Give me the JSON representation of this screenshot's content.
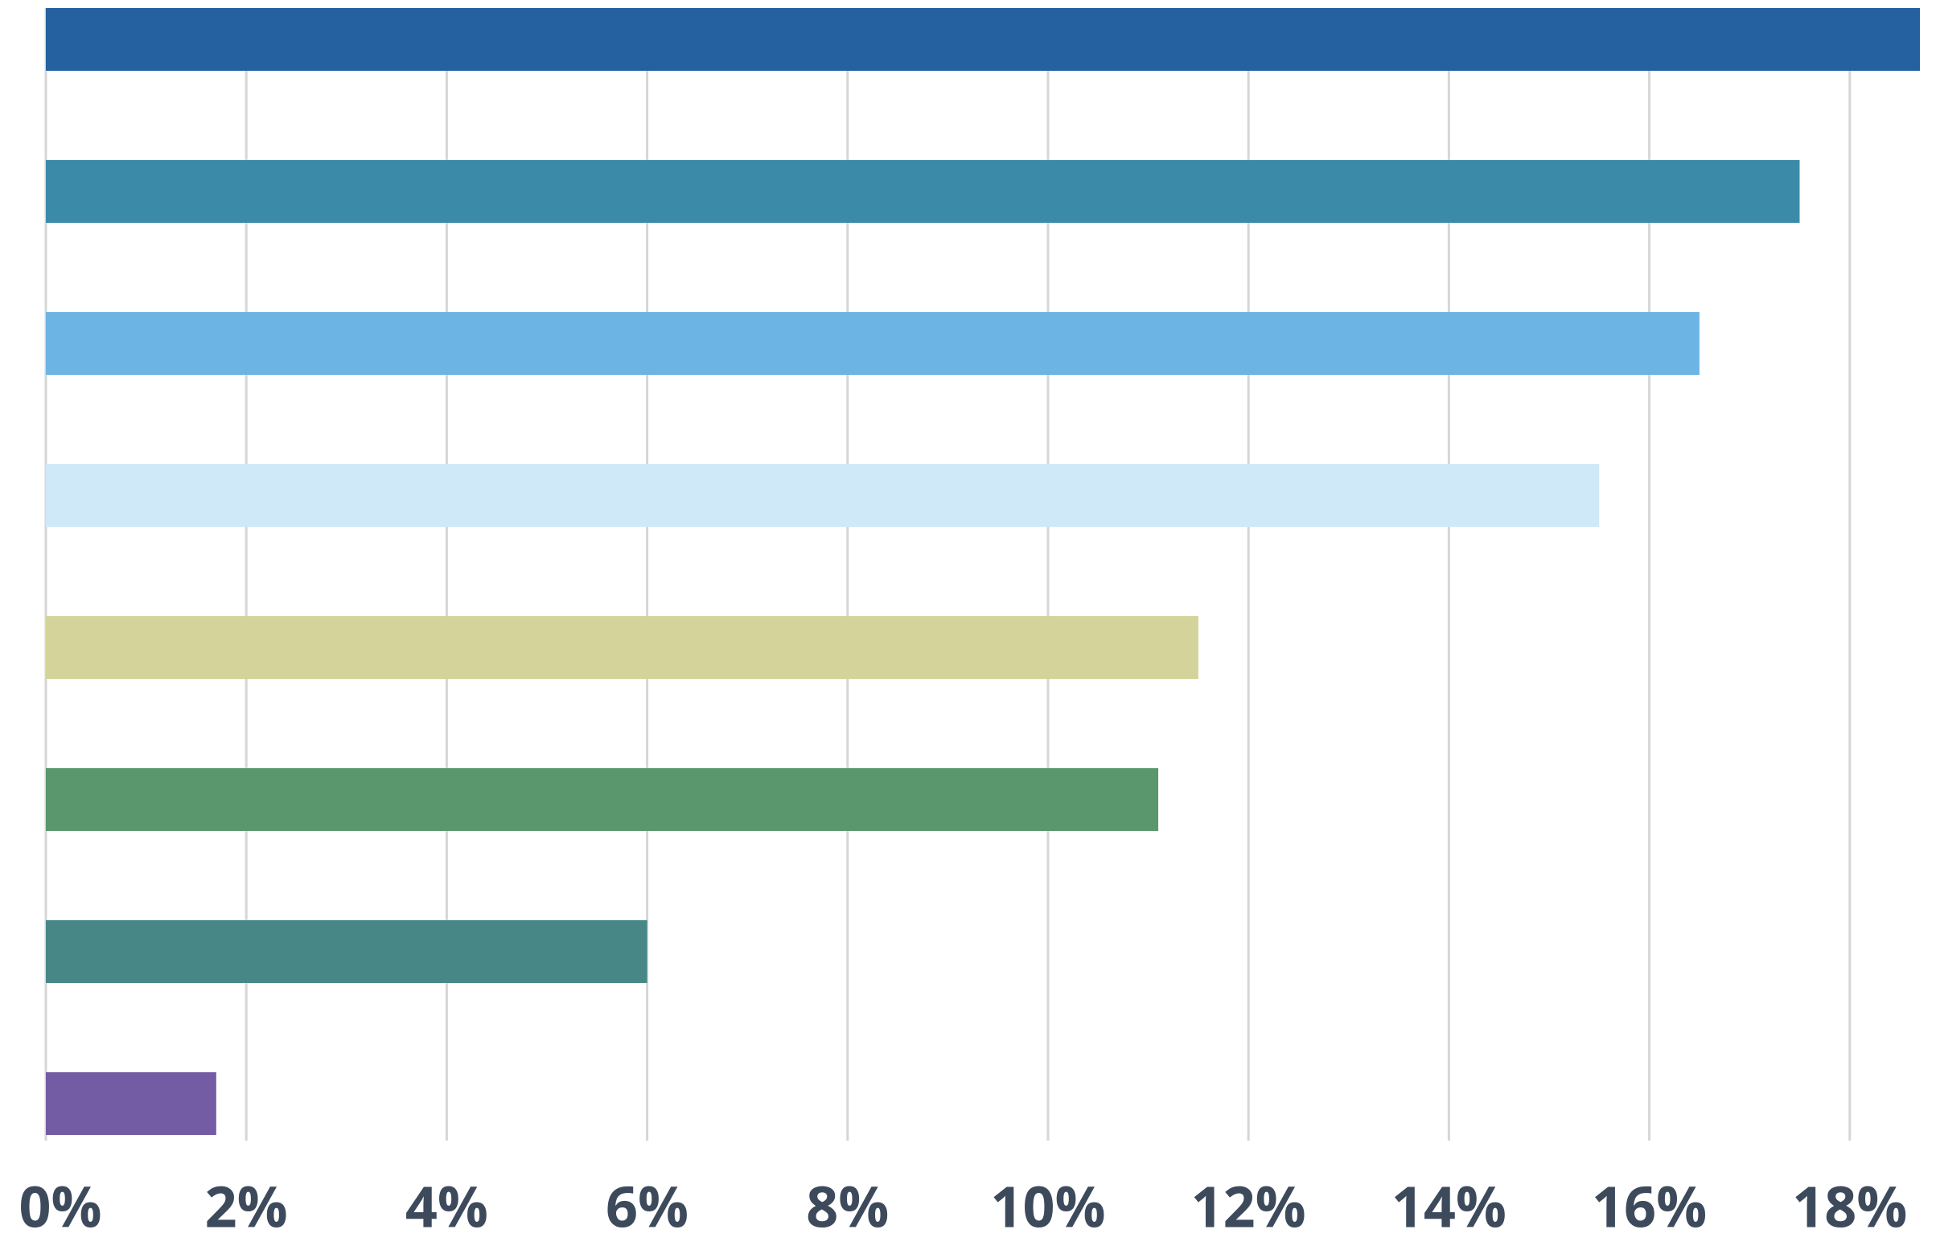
{
  "chart_data": {
    "type": "bar",
    "orientation": "horizontal",
    "categories": [
      null,
      null,
      null,
      null,
      null,
      null,
      null,
      null
    ],
    "values": [
      18.7,
      17.5,
      16.5,
      15.5,
      11.5,
      11.1,
      6,
      1.7
    ],
    "colors": [
      "#2561a1",
      "#3b8ba8",
      "#6cb4e3",
      "#d0e9f8",
      "#d4d399",
      "#5a976c",
      "#478786",
      "#735ca3"
    ],
    "xlim": [
      0,
      18.7
    ],
    "xticks": [
      {
        "value": 0,
        "label": "0%"
      },
      {
        "value": 2,
        "label": "2%"
      },
      {
        "value": 4,
        "label": "4%"
      },
      {
        "value": 6,
        "label": "6%"
      },
      {
        "value": 8,
        "label": "8%"
      },
      {
        "value": 10,
        "label": "10%"
      },
      {
        "value": 12,
        "label": "12%"
      },
      {
        "value": 14,
        "label": "14%"
      },
      {
        "value": 16,
        "label": "16%"
      },
      {
        "value": 18,
        "label": "18%"
      }
    ],
    "grid": true
  }
}
